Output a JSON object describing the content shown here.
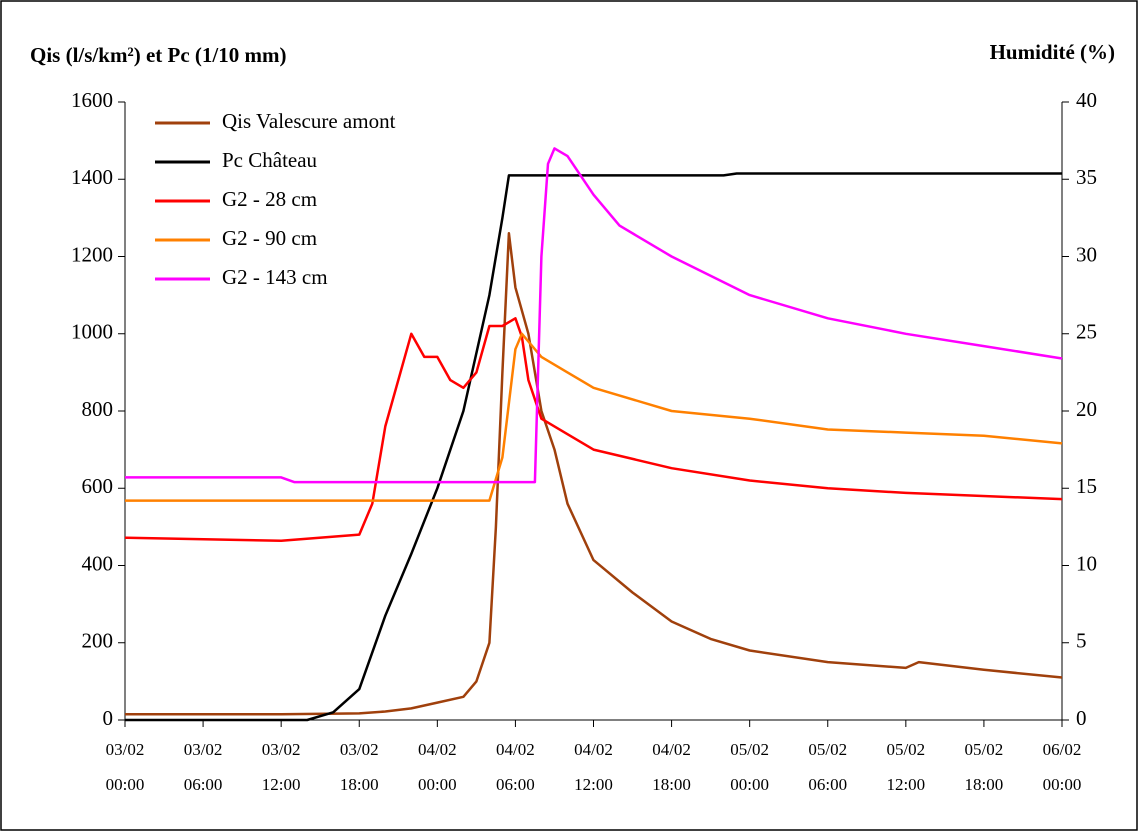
{
  "chart_data": {
    "type": "line",
    "y_label": "Qis (l/s/km²) et Pc (1/10 mm)",
    "y2_label": "Humidité (%)",
    "xlim": [
      "03/02 00:00",
      "06/02 00:00"
    ],
    "xticks": [
      "03/02 00:00",
      "03/02 06:00",
      "03/02 12:00",
      "03/02 18:00",
      "04/02 00:00",
      "04/02 06:00",
      "04/02 12:00",
      "04/02 18:00",
      "05/02 00:00",
      "05/02 06:00",
      "05/02 12:00",
      "05/02 18:00",
      "06/02 00:00"
    ],
    "ylim": [
      0,
      1600
    ],
    "yticks": [
      0,
      200,
      400,
      600,
      800,
      1000,
      1200,
      1400,
      1600
    ],
    "y2lim": [
      0,
      40
    ],
    "y2ticks": [
      0,
      5,
      10,
      15,
      20,
      25,
      30,
      35,
      40
    ],
    "legend": "upper left",
    "series": [
      {
        "name": "Qis Valescure amont",
        "color": "#a0400c",
        "x": [
          "03/02 00:00",
          "03/02 12:00",
          "03/02 18:00",
          "03/02 20:00",
          "03/02 22:00",
          "04/02 00:00",
          "04/02 02:00",
          "04/02 03:00",
          "04/02 04:00",
          "04/02 04:30",
          "04/02 05:00",
          "04/02 05:30",
          "04/02 06:00",
          "04/02 07:00",
          "04/02 08:00",
          "04/02 09:00",
          "04/02 10:00",
          "04/02 12:00",
          "04/02 15:00",
          "04/02 18:00",
          "04/02 21:00",
          "05/02 00:00",
          "05/02 06:00",
          "05/02 12:00",
          "05/02 13:00",
          "05/02 18:00",
          "06/02 00:00"
        ],
        "values": [
          15,
          15,
          17,
          22,
          30,
          45,
          60,
          100,
          200,
          500,
          900,
          1260,
          1120,
          1000,
          800,
          700,
          560,
          414,
          330,
          255,
          210,
          180,
          150,
          135,
          150,
          130,
          110
        ]
      },
      {
        "name": "Pc Château",
        "color": "#000000",
        "x": [
          "03/02 00:00",
          "03/02 14:00",
          "03/02 16:00",
          "03/02 18:00",
          "03/02 20:00",
          "03/02 22:00",
          "04/02 00:00",
          "04/02 02:00",
          "04/02 04:00",
          "04/02 05:00",
          "04/02 05:30",
          "04/02 22:00",
          "04/02 23:00",
          "06/02 00:00"
        ],
        "values": [
          0,
          0,
          20,
          80,
          270,
          430,
          600,
          800,
          1100,
          1300,
          1410,
          1410,
          1415,
          1415
        ]
      },
      {
        "name": "G2 - 28 cm",
        "color": "#ff0000",
        "axis": "y2",
        "x": [
          "03/02 00:00",
          "03/02 12:00",
          "03/02 18:00",
          "03/02 19:00",
          "03/02 20:00",
          "03/02 21:00",
          "03/02 22:00",
          "03/02 23:00",
          "04/02 00:00",
          "04/02 01:00",
          "04/02 02:00",
          "04/02 03:00",
          "04/02 04:00",
          "04/02 05:00",
          "04/02 06:00",
          "04/02 06:30",
          "04/02 07:00",
          "04/02 08:00",
          "04/02 10:00",
          "04/02 12:00",
          "04/02 18:00",
          "05/02 00:00",
          "05/02 06:00",
          "05/02 12:00",
          "06/02 00:00"
        ],
        "values": [
          11.8,
          11.6,
          12,
          14,
          19,
          22,
          25,
          23.5,
          23.5,
          22,
          21.5,
          22.5,
          25.5,
          25.5,
          26,
          24.8,
          22,
          19.5,
          18.5,
          17.5,
          16.3,
          15.5,
          15,
          14.7,
          14.3
        ]
      },
      {
        "name": "G2 - 90 cm",
        "color": "#ff8000",
        "axis": "y2",
        "x": [
          "03/02 00:00",
          "04/02 04:00",
          "04/02 05:00",
          "04/02 06:00",
          "04/02 06:30",
          "04/02 07:00",
          "04/02 08:00",
          "04/02 10:00",
          "04/02 12:00",
          "04/02 18:00",
          "05/02 00:00",
          "05/02 06:00",
          "05/02 12:00",
          "05/02 18:00",
          "06/02 00:00"
        ],
        "values": [
          14.2,
          14.2,
          17,
          24,
          25,
          24.5,
          23.5,
          22.5,
          21.5,
          20,
          19.5,
          18.8,
          18.6,
          18.4,
          17.9
        ]
      },
      {
        "name": "G2 - 143 cm",
        "color": "#ff00ff",
        "axis": "y2",
        "x": [
          "03/02 00:00",
          "03/02 12:00",
          "03/02 13:00",
          "04/02 07:30",
          "04/02 08:00",
          "04/02 08:30",
          "04/02 09:00",
          "04/02 10:00",
          "04/02 12:00",
          "04/02 14:00",
          "04/02 18:00",
          "05/02 00:00",
          "05/02 06:00",
          "05/02 12:00",
          "05/02 18:00",
          "06/02 00:00"
        ],
        "values": [
          15.7,
          15.7,
          15.4,
          15.4,
          30,
          36,
          37,
          36.5,
          34,
          32,
          30,
          27.5,
          26,
          25,
          24.2,
          23.4
        ]
      }
    ]
  }
}
